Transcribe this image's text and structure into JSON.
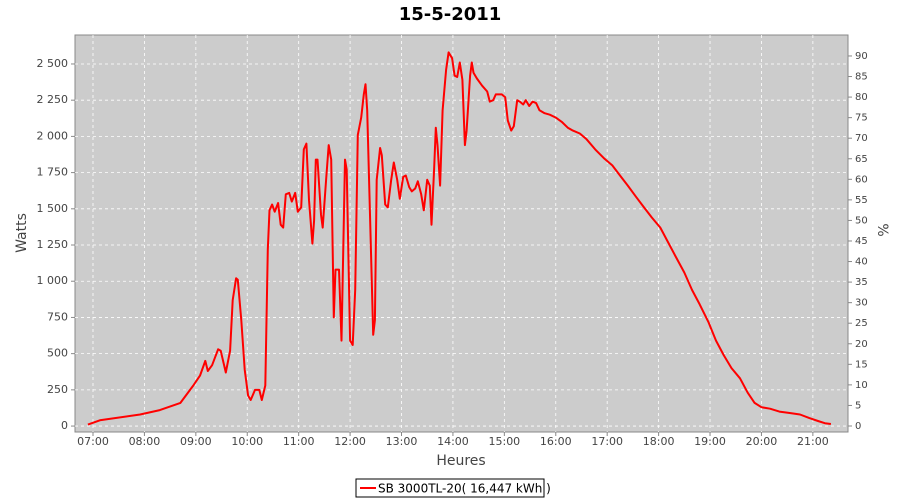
{
  "chart_data": {
    "type": "line",
    "title": "15-5-2011",
    "x_label": "Heures",
    "y_label": "Watts",
    "y2_label": "%",
    "xlim": [
      "06:39",
      "21:41"
    ],
    "xticks": [
      "07:00",
      "08:00",
      "09:00",
      "10:00",
      "11:00",
      "12:00",
      "13:00",
      "14:00",
      "15:00",
      "16:00",
      "17:00",
      "18:00",
      "19:00",
      "20:00",
      "21:00"
    ],
    "ylim": [
      -41,
      2700
    ],
    "yticks": [
      0,
      250,
      500,
      750,
      {
        "value": 1000,
        "label": "1 000"
      },
      {
        "value": 1250,
        "label": "1 250"
      },
      {
        "value": 1500,
        "label": "1 500"
      },
      {
        "value": 1750,
        "label": "1 750"
      },
      {
        "value": 2000,
        "label": "2 000"
      },
      {
        "value": 2250,
        "label": "2 250"
      },
      {
        "value": 2500,
        "label": "2 500"
      }
    ],
    "y2lim": [
      -1.46,
      95.1
    ],
    "y2ticks": [
      0,
      5,
      10,
      15,
      20,
      25,
      30,
      35,
      40,
      45,
      50,
      55,
      60,
      65,
      70,
      75,
      80,
      85,
      90
    ],
    "grid": true,
    "legend": "bottom",
    "x": [
      "06:54",
      "07:08",
      "07:55",
      "08:18",
      "08:42",
      "08:57",
      "09:05",
      "09:11",
      "09:14",
      "09:19",
      "09:26",
      "09:29",
      "09:35",
      "09:40",
      "09:43",
      "09:47",
      "09:49",
      "09:53",
      "09:57",
      "10:01",
      "10:04",
      "10:09",
      "10:14",
      "10:17",
      "10:21",
      "10:24",
      "10:26",
      "10:29",
      "10:32",
      "10:36",
      "10:39",
      "10:42",
      "10:45",
      "10:49",
      "10:52",
      "10:56",
      "10:59",
      "11:03",
      "11:06",
      "11:09",
      "11:12",
      "11:16",
      "11:18",
      "11:20",
      "11:22",
      "11:26",
      "11:28",
      "11:32",
      "11:35",
      "11:38",
      "11:41",
      "11:43",
      "11:47",
      "11:50",
      "11:54",
      "11:56",
      "12:00",
      "12:03",
      "12:06",
      "12:09",
      "12:13",
      "12:16",
      "12:18",
      "12:20",
      "12:24",
      "12:27",
      "12:29",
      "12:31",
      "12:35",
      "12:37",
      "12:41",
      "12:44",
      "12:48",
      "12:51",
      "12:55",
      "12:58",
      "13:02",
      "13:05",
      "13:09",
      "13:12",
      "13:16",
      "13:19",
      "13:23",
      "13:26",
      "13:30",
      "13:33",
      "13:35",
      "13:38",
      "13:40",
      "13:42",
      "13:45",
      "13:48",
      "13:52",
      "13:55",
      "13:59",
      "14:02",
      "14:05",
      "14:08",
      "14:11",
      "14:14",
      "14:16",
      "14:20",
      "14:22",
      "14:24",
      "14:28",
      "14:34",
      "14:40",
      "14:43",
      "14:47",
      "14:50",
      "14:57",
      "15:01",
      "15:04",
      "15:08",
      "15:11",
      "15:15",
      "15:18",
      "15:22",
      "15:25",
      "15:29",
      "15:33",
      "15:37",
      "15:41",
      "15:47",
      "15:53",
      "16:00",
      "16:07",
      "16:14",
      "16:20",
      "16:28",
      "16:36",
      "16:46",
      "16:56",
      "17:06",
      "17:15",
      "17:24",
      "17:34",
      "17:43",
      "17:52",
      "18:02",
      "18:11",
      "18:20",
      "18:30",
      "18:39",
      "18:48",
      "18:58",
      "19:07",
      "19:16",
      "19:25",
      "19:35",
      "19:44",
      "19:52",
      "20:00",
      "20:10",
      "20:21",
      "20:33",
      "20:45",
      "20:56",
      "21:06",
      "21:14",
      "21:21"
    ],
    "series": [
      {
        "name": "SB 3000TL-20( 16,447 kWh )",
        "color": "#ff0000",
        "values": [
          10,
          40,
          80,
          110,
          160,
          280,
          350,
          450,
          380,
          420,
          530,
          520,
          370,
          520,
          870,
          1020,
          1010,
          730,
          390,
          210,
          180,
          250,
          250,
          180,
          280,
          1220,
          1490,
          1530,
          1480,
          1540,
          1390,
          1370,
          1600,
          1610,
          1550,
          1610,
          1480,
          1510,
          1910,
          1950,
          1560,
          1260,
          1420,
          1840,
          1840,
          1460,
          1370,
          1700,
          1940,
          1840,
          750,
          1080,
          1080,
          590,
          1840,
          1770,
          590,
          560,
          940,
          2010,
          2130,
          2290,
          2360,
          2180,
          1280,
          630,
          730,
          1700,
          1920,
          1870,
          1530,
          1510,
          1700,
          1820,
          1700,
          1570,
          1720,
          1730,
          1650,
          1620,
          1640,
          1690,
          1600,
          1490,
          1700,
          1660,
          1390,
          1770,
          2060,
          1940,
          1660,
          2180,
          2460,
          2580,
          2540,
          2420,
          2410,
          2510,
          2390,
          1940,
          2040,
          2420,
          2510,
          2440,
          2400,
          2350,
          2310,
          2240,
          2250,
          2290,
          2290,
          2270,
          2110,
          2040,
          2070,
          2250,
          2240,
          2220,
          2250,
          2210,
          2240,
          2230,
          2180,
          2160,
          2150,
          2130,
          2100,
          2060,
          2040,
          2020,
          1980,
          1910,
          1850,
          1800,
          1730,
          1660,
          1580,
          1510,
          1440,
          1370,
          1270,
          1170,
          1060,
          940,
          840,
          720,
          590,
          490,
          400,
          330,
          230,
          160,
          130,
          120,
          100,
          90,
          80,
          55,
          35,
          20,
          14
        ]
      }
    ]
  }
}
